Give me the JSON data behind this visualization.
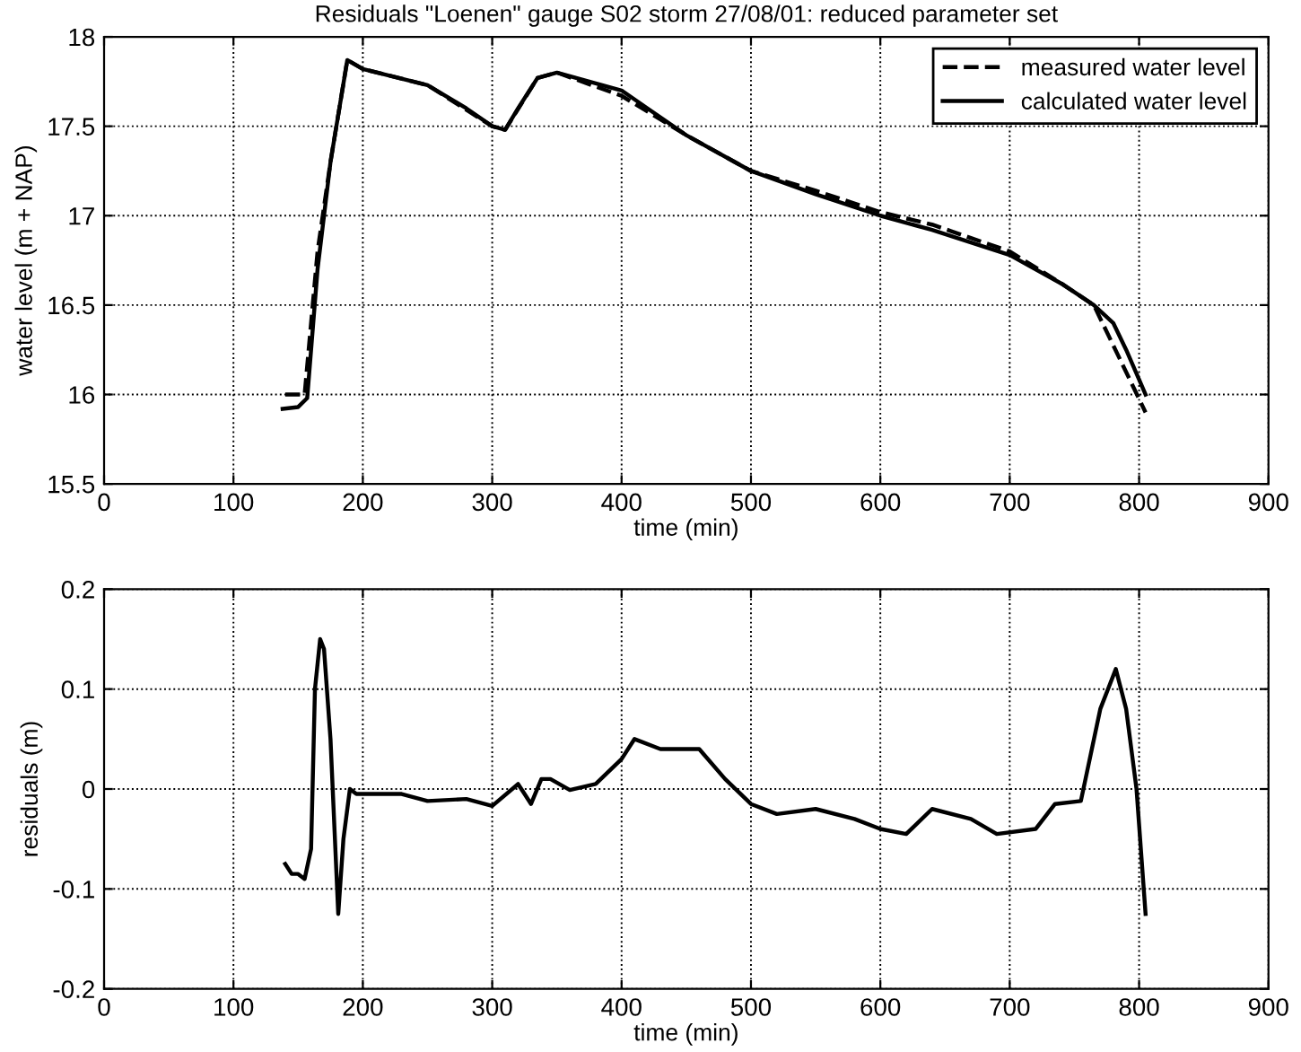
{
  "chart_data": [
    {
      "type": "line",
      "title": "Residuals \"Loenen\" gauge S02 storm 27/08/01: reduced parameter set",
      "xlabel": "time (min)",
      "ylabel": "water level (m + NAP)",
      "xlim": [
        0,
        900
      ],
      "xticks": [
        0,
        100,
        200,
        300,
        400,
        500,
        600,
        700,
        800,
        900
      ],
      "ylim": [
        15.5,
        18
      ],
      "yticks": [
        15.5,
        16,
        16.5,
        17,
        17.5,
        18
      ],
      "grid": true,
      "legend": "top right",
      "series": [
        {
          "name": "measured water level",
          "color": "#000000",
          "line_style": "dashed",
          "x": [
            140,
            155,
            165,
            175,
            188,
            200,
            250,
            300,
            310,
            335,
            350,
            400,
            450,
            500,
            550,
            600,
            640,
            700,
            740,
            765,
            785,
            805
          ],
          "values": [
            16.0,
            16.0,
            16.8,
            17.3,
            17.87,
            17.82,
            17.73,
            17.5,
            17.48,
            17.77,
            17.8,
            17.67,
            17.45,
            17.25,
            17.14,
            17.02,
            16.95,
            16.8,
            16.62,
            16.5,
            16.2,
            15.9
          ]
        },
        {
          "name": "calculated water level",
          "color": "#000000",
          "line_style": "solid",
          "x": [
            138,
            150,
            157,
            165,
            175,
            188,
            200,
            250,
            280,
            300,
            310,
            320,
            335,
            350,
            400,
            420,
            450,
            500,
            550,
            600,
            640,
            700,
            740,
            765,
            780,
            790,
            805
          ],
          "values": [
            15.92,
            15.93,
            15.98,
            16.7,
            17.3,
            17.87,
            17.82,
            17.73,
            17.6,
            17.5,
            17.48,
            17.6,
            17.77,
            17.8,
            17.7,
            17.6,
            17.45,
            17.25,
            17.12,
            17.0,
            16.92,
            16.78,
            16.62,
            16.5,
            16.4,
            16.25,
            16.0
          ]
        }
      ]
    },
    {
      "type": "line",
      "xlabel": "time (min)",
      "ylabel": "residuals (m)",
      "xlim": [
        0,
        900
      ],
      "xticks": [
        0,
        100,
        200,
        300,
        400,
        500,
        600,
        700,
        800,
        900
      ],
      "ylim": [
        -0.2,
        0.2
      ],
      "yticks": [
        -0.2,
        -0.1,
        0,
        0.1,
        0.2
      ],
      "grid": true,
      "series": [
        {
          "color": "#000000",
          "line_style": "solid",
          "x": [
            140,
            145,
            150,
            155,
            160,
            163,
            167,
            170,
            175,
            181,
            185,
            190,
            195,
            200,
            230,
            250,
            280,
            300,
            320,
            325,
            330,
            338,
            345,
            360,
            380,
            400,
            410,
            430,
            460,
            480,
            500,
            520,
            550,
            580,
            600,
            620,
            640,
            670,
            690,
            720,
            735,
            755,
            770,
            782,
            790,
            798,
            805
          ],
          "values": [
            -0.075,
            -0.085,
            -0.085,
            -0.09,
            -0.06,
            0.1,
            0.15,
            0.14,
            0.05,
            -0.125,
            -0.05,
            0,
            -0.005,
            -0.005,
            -0.005,
            -0.012,
            -0.01,
            -0.017,
            0.005,
            -0.005,
            -0.015,
            0.01,
            0.01,
            -0.001,
            0.005,
            0.03,
            0.05,
            0.04,
            0.04,
            0.01,
            -0.015,
            -0.025,
            -0.02,
            -0.03,
            -0.04,
            -0.045,
            -0.02,
            -0.03,
            -0.045,
            -0.04,
            -0.015,
            -0.012,
            0.08,
            0.12,
            0.08,
            0,
            -0.125
          ]
        }
      ]
    }
  ]
}
